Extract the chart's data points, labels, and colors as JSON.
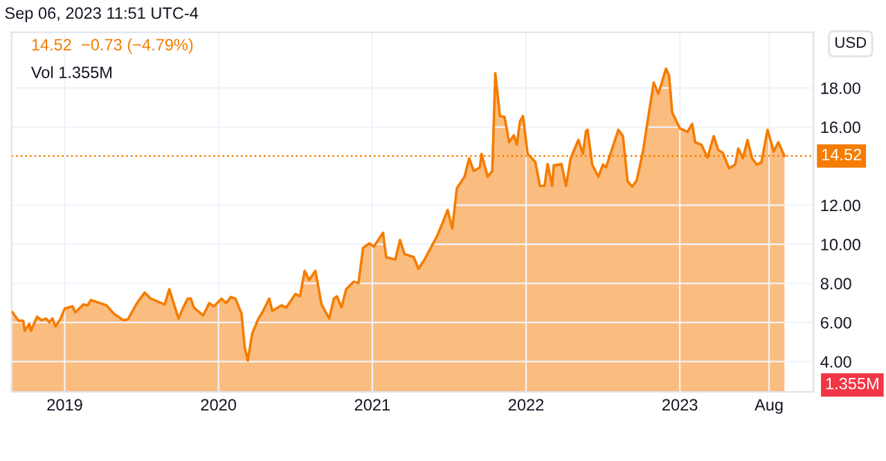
{
  "chart_data": {
    "type": "area",
    "title": "Sep 06, 2023 11:51 UTC-4",
    "ylabel": "USD",
    "annotations": [
      "14.52  −0.73 (−4.79%)",
      "Vol 1.355M",
      "1.355M"
    ],
    "x": [
      2018.66,
      2018.7,
      2018.73,
      2018.74,
      2018.77,
      2018.78,
      2018.82,
      2018.85,
      2018.88,
      2018.9,
      2018.92,
      2018.94,
      2018.97,
      2019.0,
      2019.05,
      2019.07,
      2019.12,
      2019.15,
      2019.17,
      2019.27,
      2019.32,
      2019.38,
      2019.41,
      2019.47,
      2019.52,
      2019.56,
      2019.65,
      2019.68,
      2019.74,
      2019.77,
      2019.8,
      2019.82,
      2019.84,
      2019.9,
      2019.94,
      2019.97,
      2020.02,
      2020.05,
      2020.08,
      2020.11,
      2020.15,
      2020.17,
      2020.19,
      2020.22,
      2020.26,
      2020.29,
      2020.33,
      2020.35,
      2020.41,
      2020.44,
      2020.5,
      2020.53,
      2020.56,
      2020.59,
      2020.63,
      2020.67,
      2020.72,
      2020.75,
      2020.77,
      2020.8,
      2020.83,
      2020.88,
      2020.91,
      2020.94,
      2020.98,
      2021.01,
      2021.07,
      2021.09,
      2021.15,
      2021.18,
      2021.21,
      2021.27,
      2021.3,
      2021.34,
      2021.42,
      2021.46,
      2021.49,
      2021.52,
      2021.55,
      2021.6,
      2021.63,
      2021.66,
      2021.7,
      2021.71,
      2021.75,
      2021.78,
      2021.8,
      2021.83,
      2021.86,
      2021.89,
      2021.92,
      2021.94,
      2021.96,
      2021.98,
      2022.01,
      2022.06,
      2022.09,
      2022.12,
      2022.14,
      2022.17,
      2022.18,
      2022.23,
      2022.26,
      2022.29,
      2022.34,
      2022.37,
      2022.39,
      2022.4,
      2022.43,
      2022.47,
      2022.5,
      2022.52,
      2022.56,
      2022.6,
      2022.63,
      2022.66,
      2022.69,
      2022.72,
      2022.76,
      2022.79,
      2022.83,
      2022.86,
      2022.91,
      2022.93,
      2022.95,
      2023.0,
      2023.05,
      2023.08,
      2023.1,
      2023.14,
      2023.18,
      2023.22,
      2023.25,
      2023.28,
      2023.32,
      2023.36,
      2023.38,
      2023.41,
      2023.44,
      2023.47,
      2023.5,
      2023.53,
      2023.57,
      2023.61,
      2023.64,
      2023.68
    ],
    "series": [
      {
        "color": "#f57c00",
        "values": [
          6.52,
          6.09,
          6.09,
          5.58,
          5.93,
          5.58,
          6.29,
          6.12,
          6.2,
          6.01,
          6.2,
          5.8,
          6.15,
          6.71,
          6.83,
          6.52,
          6.92,
          6.88,
          7.15,
          6.88,
          6.45,
          6.12,
          6.15,
          6.99,
          7.53,
          7.22,
          6.92,
          7.7,
          6.2,
          6.76,
          7.22,
          7.22,
          6.76,
          6.36,
          6.99,
          6.83,
          7.22,
          6.99,
          7.3,
          7.22,
          6.45,
          4.75,
          4.05,
          5.46,
          6.2,
          6.59,
          7.22,
          6.59,
          6.88,
          6.76,
          7.46,
          7.34,
          8.64,
          8.17,
          8.64,
          6.92,
          6.2,
          7.22,
          7.34,
          6.76,
          7.7,
          8.09,
          8.01,
          9.81,
          10.05,
          9.88,
          10.59,
          9.34,
          9.22,
          10.22,
          9.5,
          9.34,
          8.75,
          9.22,
          10.4,
          11.15,
          11.76,
          10.8,
          12.87,
          13.46,
          14.4,
          13.75,
          13.94,
          14.63,
          13.46,
          13.75,
          18.75,
          16.56,
          16.52,
          15.22,
          15.58,
          15.1,
          16.28,
          16.56,
          14.63,
          14.21,
          12.99,
          12.99,
          14.11,
          12.99,
          14.04,
          14.11,
          12.99,
          14.4,
          15.34,
          14.63,
          15.81,
          15.86,
          14.08,
          13.46,
          14.08,
          13.94,
          14.9,
          15.86,
          15.53,
          13.23,
          12.95,
          13.28,
          14.75,
          16.28,
          18.28,
          17.69,
          18.99,
          18.63,
          16.75,
          15.93,
          15.76,
          16.16,
          15.22,
          15.1,
          14.44,
          15.53,
          14.82,
          14.68,
          13.89,
          14.08,
          14.9,
          14.4,
          15.34,
          14.4,
          14.08,
          14.19,
          15.86,
          14.75,
          15.22,
          14.52
        ]
      }
    ],
    "xlim": [
      2018.654,
      2023.868
    ],
    "ylim": [
      2.45,
      20.85
    ],
    "xticks": [
      {
        "value": 2019,
        "label": "2019"
      },
      {
        "value": 2020,
        "label": "2020"
      },
      {
        "value": 2021,
        "label": "2021"
      },
      {
        "value": 2022,
        "label": "2022"
      },
      {
        "value": 2023,
        "label": "2023"
      },
      {
        "value": 2023.58,
        "label": "Aug"
      }
    ],
    "yticks": [
      {
        "value": 4,
        "label": "4.00"
      },
      {
        "value": 6,
        "label": "6.00"
      },
      {
        "value": 8,
        "label": "8.00"
      },
      {
        "value": 10,
        "label": "10.00"
      },
      {
        "value": 12,
        "label": "12.00"
      },
      {
        "value": 16,
        "label": "16.00"
      },
      {
        "value": 18,
        "label": "18.00"
      }
    ],
    "ref_lines": [
      {
        "axis": "y",
        "value": 14.52,
        "label": "14.52",
        "color": "#f57c00",
        "line_style": "dotted"
      }
    ],
    "grid": true,
    "legend": false
  }
}
